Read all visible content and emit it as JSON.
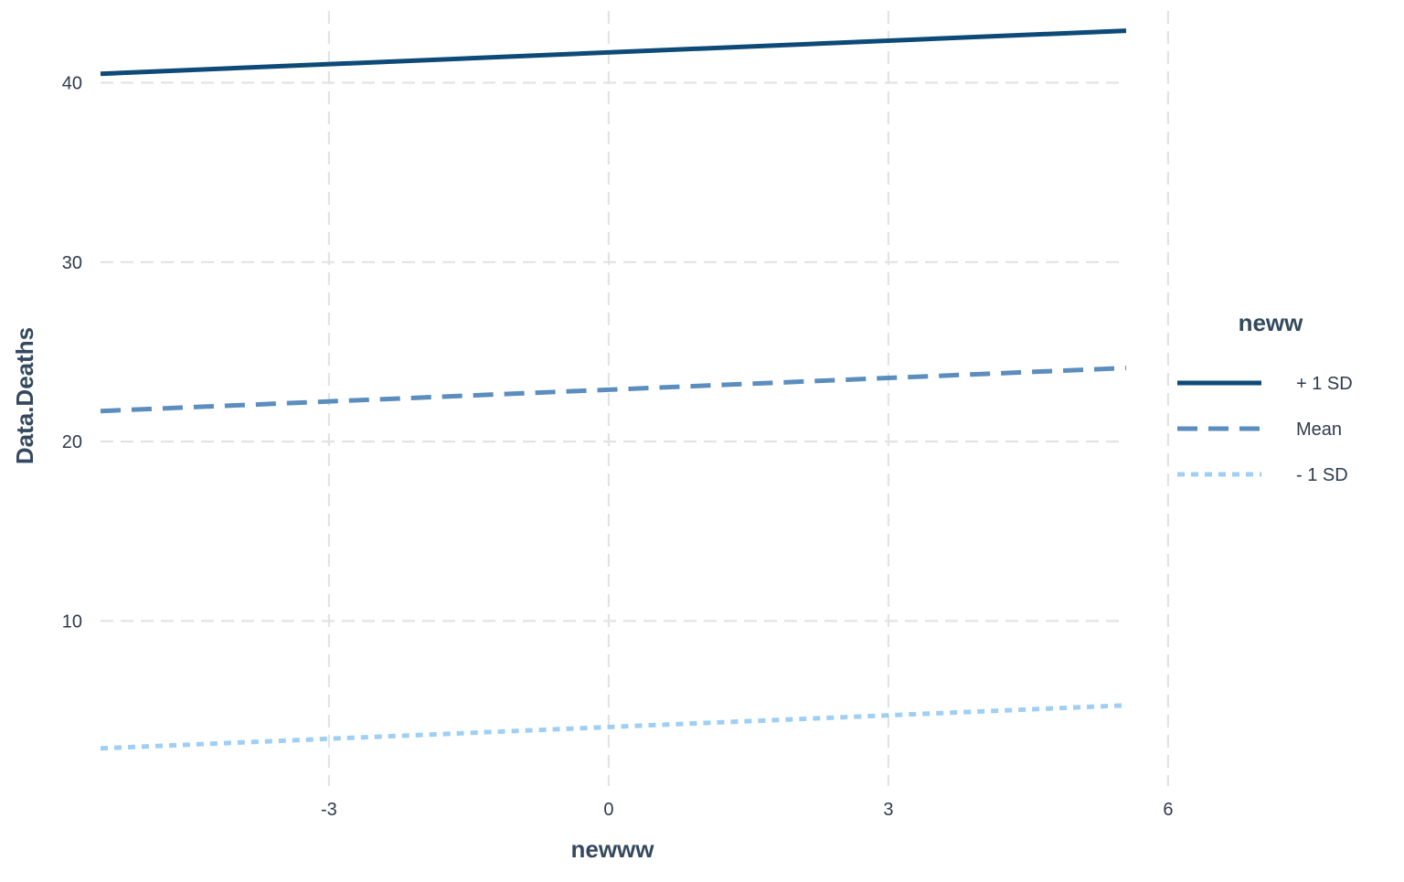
{
  "chart_data": {
    "type": "line",
    "xlabel": "newww",
    "ylabel": "Data.Deaths",
    "x": [
      -5.45,
      5.55
    ],
    "xlim": [
      -5.45,
      5.55
    ],
    "ylim": [
      0.8,
      44.0
    ],
    "xticks": [
      -3,
      0,
      3,
      6
    ],
    "yticks": [
      10,
      20,
      30,
      40
    ],
    "grid": true,
    "legend": {
      "title": "neww",
      "placement": "right"
    },
    "series": [
      {
        "name": "+ 1 SD",
        "values": [
          40.5,
          42.9
        ],
        "color": "#0d4a78",
        "dash": "solid"
      },
      {
        "name": "Mean",
        "values": [
          21.7,
          24.1
        ],
        "color": "#5b8dbe",
        "dash": "long-dash"
      },
      {
        "name": "- 1 SD",
        "values": [
          2.9,
          5.3
        ],
        "color": "#a0cff3",
        "dash": "short-dash"
      }
    ]
  }
}
